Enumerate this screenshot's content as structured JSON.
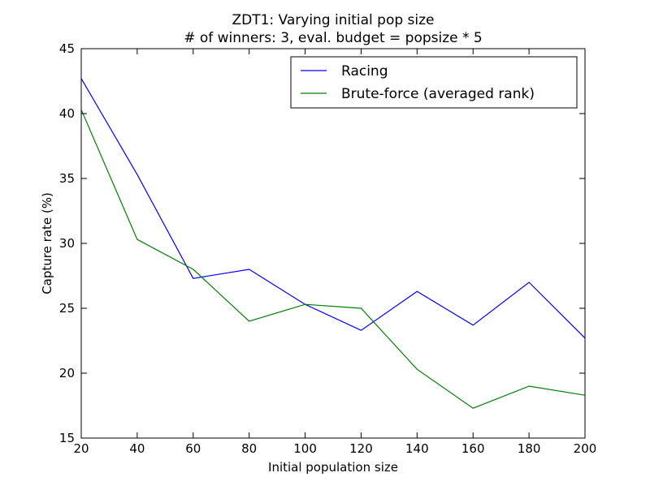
{
  "chart_data": {
    "type": "line",
    "title": "ZDT1: Varying initial pop size",
    "subtitle": "# of winners: 3, eval. budget = popsize * 5",
    "xlabel": "Initial population size",
    "ylabel": "Capture rate (%)",
    "xlim": [
      20,
      200
    ],
    "ylim": [
      15,
      45
    ],
    "xticks": [
      20,
      40,
      60,
      80,
      100,
      120,
      140,
      160,
      180,
      200
    ],
    "yticks": [
      15,
      20,
      25,
      30,
      35,
      40,
      45
    ],
    "grid": false,
    "legend_position": "top-right",
    "x": [
      20,
      40,
      60,
      80,
      100,
      120,
      140,
      160,
      180,
      200
    ],
    "series": [
      {
        "name": "Racing",
        "color": "#0000ff",
        "values": [
          42.7,
          35.3,
          27.3,
          28.0,
          25.3,
          23.3,
          26.3,
          23.7,
          27.0,
          22.7
        ]
      },
      {
        "name": "Brute-force (averaged rank)",
        "color": "#008000",
        "values": [
          40.3,
          30.3,
          28.0,
          24.0,
          25.3,
          25.0,
          20.3,
          17.3,
          19.0,
          18.3
        ]
      }
    ]
  }
}
